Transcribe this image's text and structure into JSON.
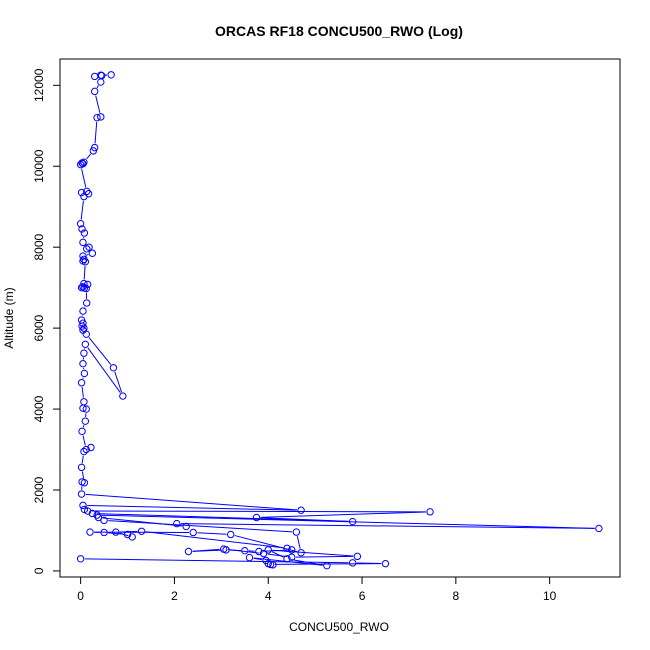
{
  "chart_data": {
    "type": "line",
    "title": "ORCAS RF18 CONCU500_RWO (Log)",
    "xlabel": "CONCU500_RWO",
    "ylabel": "Altitude (m)",
    "xlim": [
      -0.44,
      11.5
    ],
    "ylim": [
      -150,
      12650
    ],
    "x_ticks": [
      0,
      2,
      4,
      6,
      8,
      10
    ],
    "y_ticks": [
      0,
      2000,
      4000,
      6000,
      8000,
      10000,
      12000
    ],
    "grid": false,
    "series_color": "#0000ff",
    "marker": "open-circle",
    "series": [
      {
        "points": [
          {
            "x": 0.43,
            "y": 12250
          },
          {
            "x": 0.65,
            "y": 12260
          },
          {
            "x": 0.45,
            "y": 12240
          },
          {
            "x": 0.3,
            "y": 12220
          },
          {
            "x": 0.43,
            "y": 12080
          },
          {
            "x": 0.3,
            "y": 11850
          },
          {
            "x": 0.43,
            "y": 11220
          },
          {
            "x": 0.35,
            "y": 11200
          },
          {
            "x": 0.3,
            "y": 10460
          },
          {
            "x": 0.27,
            "y": 10380
          },
          {
            "x": 0.07,
            "y": 10100
          },
          {
            "x": 0.03,
            "y": 10080
          },
          {
            "x": 0.05,
            "y": 10060
          },
          {
            "x": 0.0,
            "y": 10040
          },
          {
            "x": 0.13,
            "y": 9380
          },
          {
            "x": 0.17,
            "y": 9320
          },
          {
            "x": 0.02,
            "y": 9350
          },
          {
            "x": 0.07,
            "y": 9250
          },
          {
            "x": 0.0,
            "y": 8580
          },
          {
            "x": 0.03,
            "y": 8450
          },
          {
            "x": 0.08,
            "y": 8350
          },
          {
            "x": 0.05,
            "y": 8120
          },
          {
            "x": 0.18,
            "y": 8000
          },
          {
            "x": 0.13,
            "y": 7960
          },
          {
            "x": 0.25,
            "y": 7850
          },
          {
            "x": 0.05,
            "y": 7780
          },
          {
            "x": 0.07,
            "y": 7700
          },
          {
            "x": 0.05,
            "y": 7660
          },
          {
            "x": 0.1,
            "y": 7640
          },
          {
            "x": 0.07,
            "y": 7100
          },
          {
            "x": 0.15,
            "y": 7080
          },
          {
            "x": 0.05,
            "y": 7020
          },
          {
            "x": 0.02,
            "y": 7000
          },
          {
            "x": 0.08,
            "y": 6990
          },
          {
            "x": 0.12,
            "y": 6980
          },
          {
            "x": 0.13,
            "y": 6620
          },
          {
            "x": 0.05,
            "y": 6420
          },
          {
            "x": 0.02,
            "y": 6200
          },
          {
            "x": 0.05,
            "y": 6120
          },
          {
            "x": 0.03,
            "y": 6050
          },
          {
            "x": 0.07,
            "y": 6000
          },
          {
            "x": 0.05,
            "y": 5950
          },
          {
            "x": 0.12,
            "y": 5850
          },
          {
            "x": 0.7,
            "y": 5020
          },
          {
            "x": 0.9,
            "y": 4320
          },
          {
            "x": 0.1,
            "y": 5600
          },
          {
            "x": 0.07,
            "y": 5380
          },
          {
            "x": 0.05,
            "y": 5120
          },
          {
            "x": 0.08,
            "y": 4880
          },
          {
            "x": 0.02,
            "y": 4650
          },
          {
            "x": 0.07,
            "y": 4180
          },
          {
            "x": 0.05,
            "y": 4020
          },
          {
            "x": 0.12,
            "y": 4000
          },
          {
            "x": 0.1,
            "y": 3700
          },
          {
            "x": 0.03,
            "y": 3450
          },
          {
            "x": 0.12,
            "y": 3000
          },
          {
            "x": 0.22,
            "y": 3050
          },
          {
            "x": 0.07,
            "y": 2950
          },
          {
            "x": 0.02,
            "y": 2560
          },
          {
            "x": 0.08,
            "y": 2180
          },
          {
            "x": 0.03,
            "y": 2200
          },
          {
            "x": 0.02,
            "y": 1900
          },
          {
            "x": 4.7,
            "y": 1500
          },
          {
            "x": 0.05,
            "y": 1620
          },
          {
            "x": 0.08,
            "y": 1520
          },
          {
            "x": 0.15,
            "y": 1480
          },
          {
            "x": 7.45,
            "y": 1460
          },
          {
            "x": 3.75,
            "y": 1320
          },
          {
            "x": 5.8,
            "y": 1220
          },
          {
            "x": 0.25,
            "y": 1420
          },
          {
            "x": 0.35,
            "y": 1380
          },
          {
            "x": 11.05,
            "y": 1050
          },
          {
            "x": 2.05,
            "y": 1170
          },
          {
            "x": 2.25,
            "y": 1100
          },
          {
            "x": 0.38,
            "y": 1320
          },
          {
            "x": 0.5,
            "y": 1250
          },
          {
            "x": 4.6,
            "y": 960
          },
          {
            "x": 4.7,
            "y": 450
          },
          {
            "x": 3.2,
            "y": 900
          },
          {
            "x": 2.4,
            "y": 950
          },
          {
            "x": 0.2,
            "y": 960
          },
          {
            "x": 0.5,
            "y": 950
          },
          {
            "x": 1.0,
            "y": 900
          },
          {
            "x": 1.1,
            "y": 840
          },
          {
            "x": 0.75,
            "y": 960
          },
          {
            "x": 1.3,
            "y": 980
          },
          {
            "x": 4.4,
            "y": 560
          },
          {
            "x": 4.5,
            "y": 520
          },
          {
            "x": 3.8,
            "y": 480
          },
          {
            "x": 3.5,
            "y": 500
          },
          {
            "x": 3.1,
            "y": 520
          },
          {
            "x": 2.3,
            "y": 480
          },
          {
            "x": 3.05,
            "y": 540
          },
          {
            "x": 3.9,
            "y": 430
          },
          {
            "x": 4.5,
            "y": 340
          },
          {
            "x": 5.9,
            "y": 360
          },
          {
            "x": 4.0,
            "y": 520
          },
          {
            "x": 4.4,
            "y": 300
          },
          {
            "x": 5.25,
            "y": 130
          },
          {
            "x": 3.6,
            "y": 330
          },
          {
            "x": 3.95,
            "y": 260
          },
          {
            "x": 4.0,
            "y": 180
          },
          {
            "x": 4.1,
            "y": 150
          },
          {
            "x": 4.05,
            "y": 160
          },
          {
            "x": 6.5,
            "y": 180
          },
          {
            "x": 5.8,
            "y": 200
          },
          {
            "x": 0.0,
            "y": 300
          }
        ]
      }
    ]
  }
}
